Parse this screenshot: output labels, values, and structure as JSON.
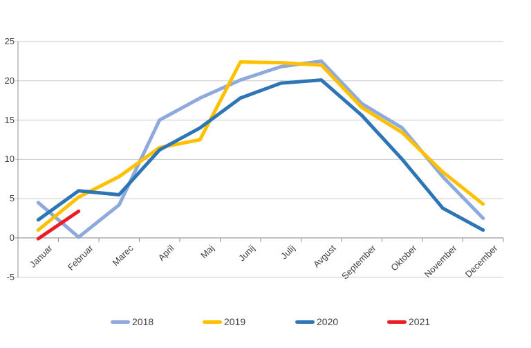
{
  "chart_data": {
    "type": "line",
    "title": "",
    "xlabel": "",
    "ylabel": "",
    "categories": [
      "Januar",
      "Februar",
      "Marec",
      "April",
      "Maj",
      "Junij",
      "Julij",
      "Avgust",
      "September",
      "Oktober",
      "November",
      "December"
    ],
    "series": [
      {
        "name": "2018",
        "color": "#8EA9DB",
        "values": [
          4.5,
          0.1,
          4.2,
          15.0,
          17.8,
          20.1,
          21.8,
          22.5,
          17.1,
          14.0,
          7.8,
          2.5
        ]
      },
      {
        "name": "2019",
        "color": "#FFC000",
        "values": [
          1.0,
          5.2,
          7.8,
          11.5,
          12.5,
          22.4,
          22.3,
          22.0,
          16.6,
          13.4,
          8.4,
          4.3
        ]
      },
      {
        "name": "2020",
        "color": "#2E75B6",
        "values": [
          2.3,
          6.0,
          5.5,
          11.2,
          14.0,
          17.8,
          19.7,
          20.1,
          15.6,
          10.0,
          3.8,
          1.0
        ]
      },
      {
        "name": "2021",
        "color": "#EC1C24",
        "values": [
          -0.1,
          3.4
        ]
      }
    ],
    "y_ticks": [
      25,
      20,
      15,
      10,
      5,
      0,
      -5
    ],
    "ylim": [
      -5,
      25
    ],
    "grid": "horizontal",
    "legend_position": "bottom",
    "legend_labels": [
      "2018",
      "2019",
      "2020",
      "2021"
    ]
  },
  "colors": {
    "grid_line": "#c9c9c9",
    "axis_line": "#8f8f8f",
    "tick_text": "#3f3f3f"
  }
}
